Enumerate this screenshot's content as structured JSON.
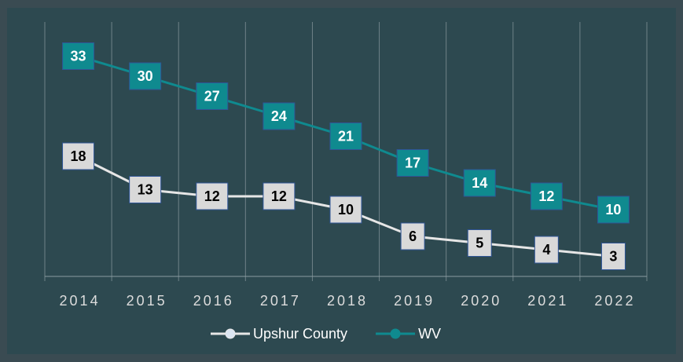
{
  "chart_data": {
    "type": "line",
    "categories": [
      "2014",
      "2015",
      "2016",
      "2017",
      "2018",
      "2019",
      "2020",
      "2021",
      "2022"
    ],
    "series": [
      {
        "name": "Upshur County",
        "color": "#e6e6e6",
        "label_fill": "#d9d9d9",
        "label_text": "#000000",
        "marker": "#dce6f2",
        "values": [
          18,
          13,
          12,
          12,
          10,
          6,
          5,
          4,
          3
        ]
      },
      {
        "name": "WV",
        "color": "#0f8a8f",
        "label_fill": "#0f8a8f",
        "label_text": "#ffffff",
        "marker": "#0f8a8f",
        "values": [
          33,
          30,
          27,
          24,
          21,
          17,
          14,
          12,
          10
        ]
      }
    ],
    "ylim": [
      0,
      40
    ],
    "grid": true,
    "legend": "bottom"
  }
}
